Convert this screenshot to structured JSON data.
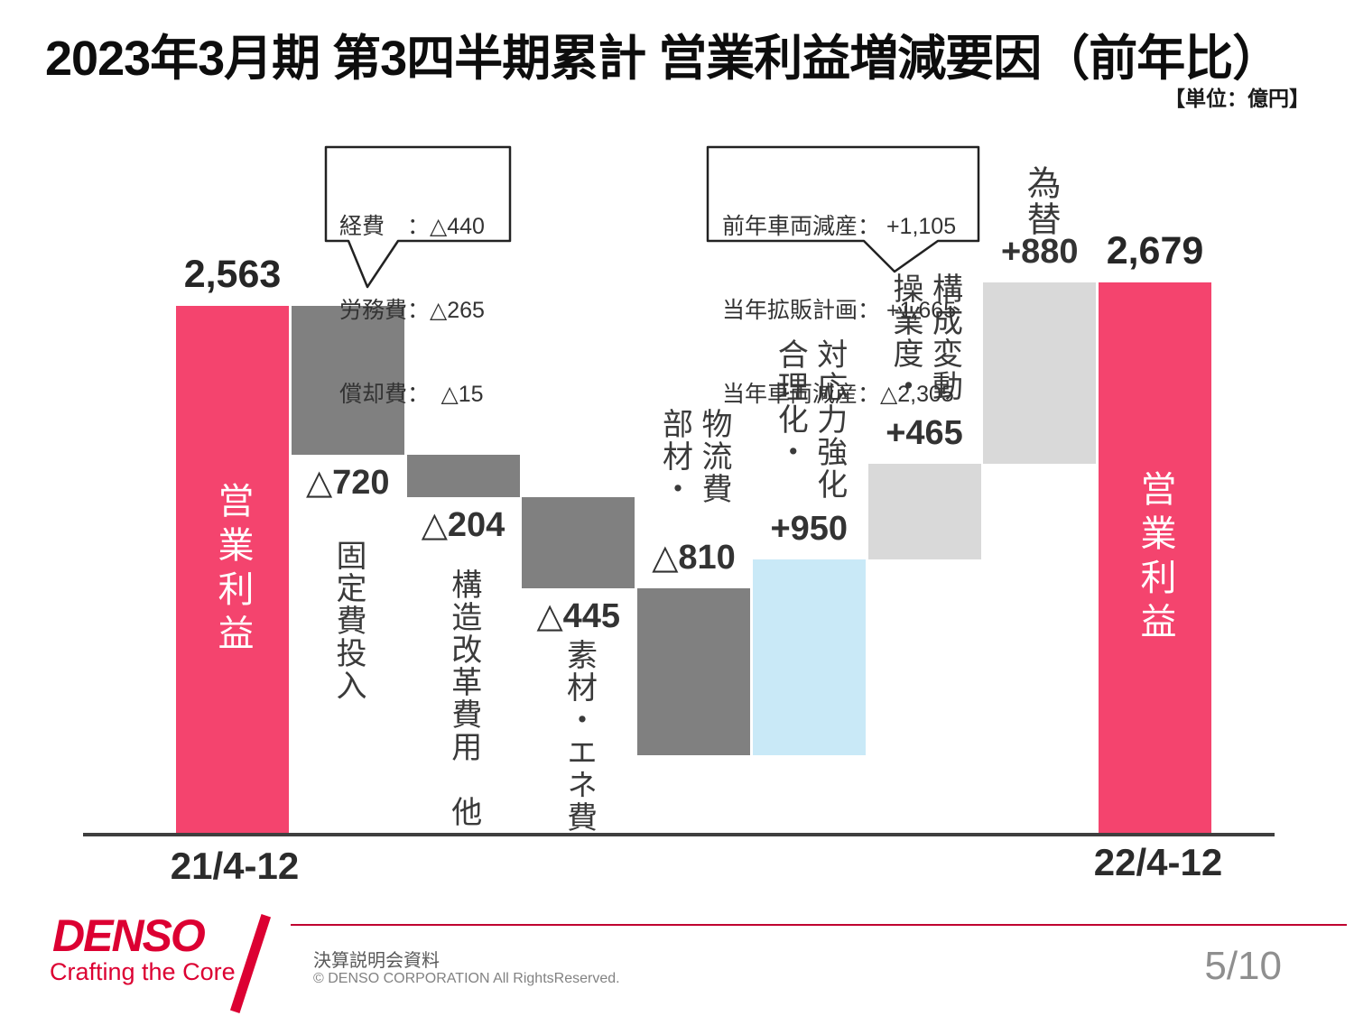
{
  "title": "2023年3月期 第3四半期累計 営業利益増減要因（前年比）",
  "unit_note": "【単位：億円】",
  "chart_data": {
    "type": "bar",
    "subtype": "waterfall",
    "title": "営業利益増減要因（前年比）",
    "unit": "億円",
    "grid": false,
    "ylim": [
      0,
      2679
    ],
    "x_axis_labels": [
      "21/4-12",
      "22/4-12"
    ],
    "colors": {
      "pink": "#f4446e",
      "dark_gray": "#808080",
      "light_gray": "#d9d9d9",
      "light_blue": "#c9e9f7"
    },
    "steps": [
      {
        "name": "営業利益(前年)",
        "period": "21/4-12",
        "role": "start",
        "value": 2563,
        "value_label": "2,563",
        "color_key": "pink",
        "name_lines": "営業利益",
        "name_placement": "inside"
      },
      {
        "name": "固定費投入",
        "role": "decrease",
        "value": -720,
        "value_label": "△720",
        "color_key": "dark_gray",
        "name_lines": "固定費投入",
        "label_side": "below"
      },
      {
        "name": "構造改革費用 他",
        "role": "decrease",
        "value": -204,
        "value_label": "△204",
        "color_key": "dark_gray",
        "name_lines": "構造改革費用　他",
        "label_side": "below"
      },
      {
        "name": "素材・エネ費",
        "role": "decrease",
        "value": -445,
        "value_label": "△445",
        "color_key": "dark_gray",
        "name_lines": "素材・エネ費",
        "label_side": "below"
      },
      {
        "name": "部材・物流費",
        "role": "decrease",
        "value": -810,
        "value_label": "△810",
        "color_key": "dark_gray",
        "name_lines": "部材・\n物流費",
        "label_side": "above"
      },
      {
        "name": "合理化・対応力強化",
        "role": "increase",
        "value": 950,
        "value_label": "+950",
        "color_key": "light_blue",
        "name_lines": "合理化・\n対応力強化",
        "label_side": "above"
      },
      {
        "name": "操業度・構成変動",
        "role": "increase",
        "value": 465,
        "value_label": "+465",
        "color_key": "light_gray",
        "name_lines": "操業度・\n構成変動",
        "label_side": "above"
      },
      {
        "name": "為替",
        "role": "increase",
        "value": 880,
        "value_label": "+880",
        "color_key": "light_gray",
        "name_lines": "為替",
        "label_side": "above"
      },
      {
        "name": "営業利益(当年)",
        "period": "22/4-12",
        "role": "end",
        "value": 2679,
        "value_label": "2,679",
        "color_key": "pink",
        "name_lines": "営業利益",
        "name_placement": "inside"
      }
    ]
  },
  "callouts": [
    {
      "target": "固定費投入",
      "lines": [
        "経費　：△440",
        "労務費：△265",
        "償却費：　△15"
      ]
    },
    {
      "target": "操業度・構成変動",
      "lines": [
        "前年車両減産： +1,105",
        "当年拡販計画： +1,665",
        "当年車両減産：△2,305"
      ]
    }
  ],
  "footer": {
    "logo": "DENSO",
    "tagline": "Crafting the Core",
    "doc_title": "決算説明会資料",
    "copyright": "© DENSO CORPORATION All RightsReserved.",
    "page_number": "5/10"
  },
  "accent_colors": {
    "denso_red": "#dc0032",
    "axis": "#3f3f3f"
  }
}
